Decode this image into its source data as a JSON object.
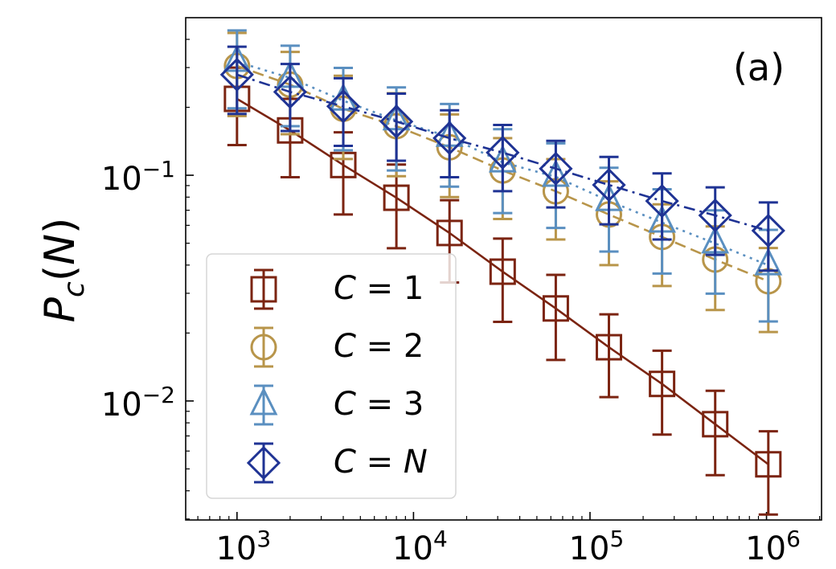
{
  "chart_data": {
    "type": "line",
    "title": "",
    "panel_label": "(a)",
    "xlabel": "",
    "ylabel": {
      "base": "P",
      "sub": "c",
      "arg": "N"
    },
    "xscale": "log",
    "yscale": "log",
    "xlim": [
      512,
      2050000
    ],
    "ylim": [
      0.00297,
      0.499
    ],
    "grid": false,
    "x_ticks": [
      {
        "value": 1000,
        "base": "10",
        "exp": "3"
      },
      {
        "value": 10000,
        "base": "10",
        "exp": "4"
      },
      {
        "value": 100000,
        "base": "10",
        "exp": "5"
      },
      {
        "value": 1000000,
        "base": "10",
        "exp": "6"
      }
    ],
    "y_ticks": [
      {
        "value": 0.01,
        "base": "10",
        "exp": "−2"
      },
      {
        "value": 0.1,
        "base": "10",
        "exp": "−1"
      }
    ],
    "x": [
      1000,
      2000,
      4000,
      8000,
      16000,
      32000,
      64000,
      128000,
      256000,
      512000,
      1024000
    ],
    "series": [
      {
        "name": "C = 1",
        "label_lhs": "C",
        "label_rhs": "1",
        "rhs_italic": false,
        "color": "#7b2411",
        "marker": "square",
        "linestyle": "solid",
        "values": [
          0.218,
          0.158,
          0.111,
          0.0795,
          0.0555,
          0.0374,
          0.0257,
          0.0173,
          0.0119,
          0.00789,
          0.00524
        ],
        "yerr": [
          0.082,
          0.06,
          0.044,
          0.032,
          0.022,
          0.015,
          0.0105,
          0.0069,
          0.0048,
          0.0032,
          0.0021
        ]
      },
      {
        "name": "C = 2",
        "label_lhs": "C",
        "label_rhs": "2",
        "rhs_italic": false,
        "color": "#b8954a",
        "marker": "circle",
        "linestyle": "dashed",
        "values": [
          0.305,
          0.252,
          0.197,
          0.165,
          0.133,
          0.105,
          0.0849,
          0.067,
          0.0533,
          0.0423,
          0.0339
        ],
        "yerr": [
          0.122,
          0.1,
          0.079,
          0.066,
          0.053,
          0.041,
          0.033,
          0.027,
          0.021,
          0.017,
          0.0137
        ]
      },
      {
        "name": "C = 3",
        "label_lhs": "C",
        "label_rhs": "3",
        "rhs_italic": false,
        "color": "#5a8fc0",
        "marker": "triangle",
        "linestyle": "dotted",
        "values": [
          0.318,
          0.27,
          0.214,
          0.175,
          0.148,
          0.114,
          0.0984,
          0.0769,
          0.0617,
          0.0499,
          0.0399
        ],
        "yerr": [
          0.12,
          0.105,
          0.085,
          0.07,
          0.059,
          0.046,
          0.04,
          0.031,
          0.025,
          0.02,
          0.0174
        ]
      },
      {
        "name": "C = N",
        "label_lhs": "C",
        "label_rhs": "N",
        "rhs_italic": true,
        "color": "#1f3394",
        "marker": "diamond",
        "linestyle": "dashdot",
        "values": [
          0.279,
          0.234,
          0.202,
          0.173,
          0.146,
          0.126,
          0.107,
          0.0906,
          0.0769,
          0.0664,
          0.0568
        ],
        "yerr": [
          0.092,
          0.077,
          0.067,
          0.057,
          0.048,
          0.041,
          0.035,
          0.03,
          0.025,
          0.022,
          0.019
        ]
      }
    ],
    "legend": {
      "placement": "lower-left"
    }
  }
}
